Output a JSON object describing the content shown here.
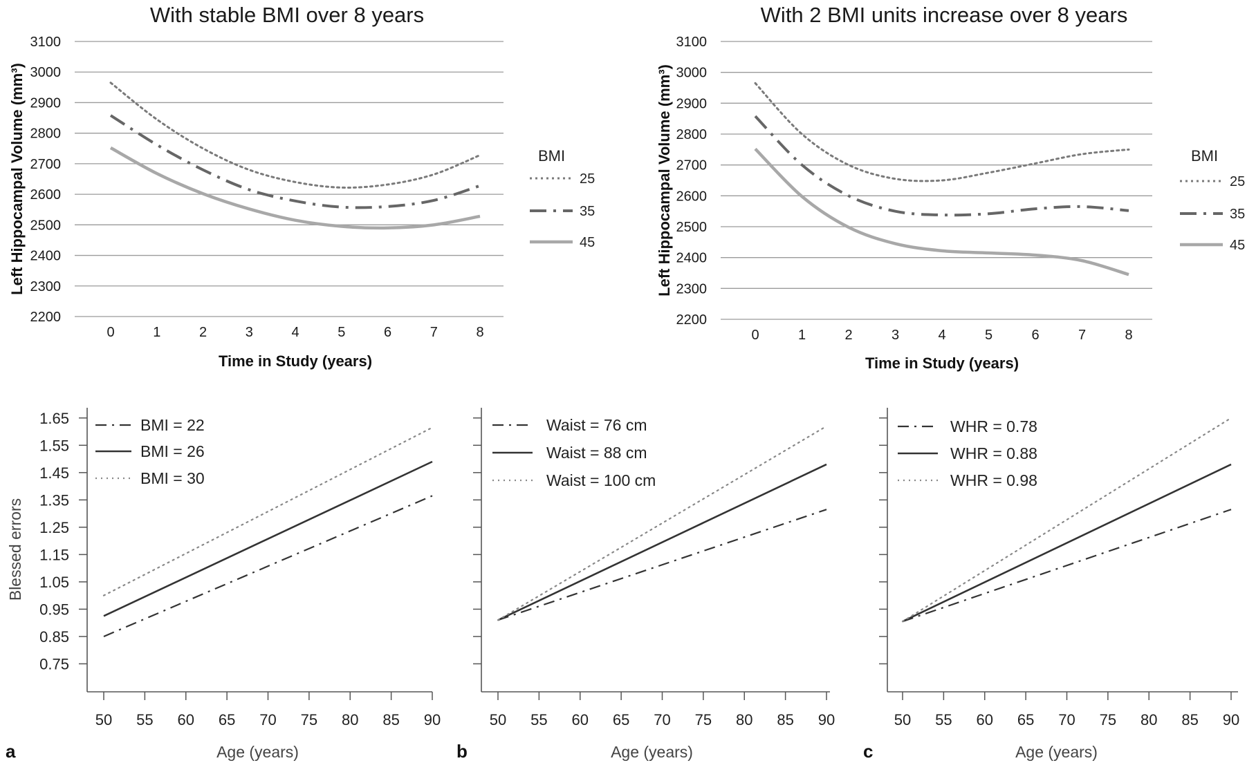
{
  "chart_data": [
    {
      "type": "line",
      "title": "With stable BMI over 8 years",
      "xlabel": "Time in Study (years)",
      "ylabel": "Left Hippocampal Volume (mm³)",
      "x": [
        0,
        1,
        2,
        3,
        4,
        5,
        6,
        7,
        8
      ],
      "ylim": [
        2200,
        3100
      ],
      "yticks": [
        2200,
        2300,
        2400,
        2500,
        2600,
        2700,
        2800,
        2900,
        3000,
        3100
      ],
      "grid": true,
      "legend_title": "BMI",
      "legend_position": "right",
      "series": [
        {
          "name": "25",
          "style": "dotted",
          "color": "#7a7a7a",
          "values": [
            2965,
            2845,
            2750,
            2680,
            2640,
            2622,
            2632,
            2665,
            2728
          ]
        },
        {
          "name": "35",
          "style": "dash-dot",
          "color": "#666666",
          "values": [
            2858,
            2762,
            2680,
            2615,
            2578,
            2558,
            2560,
            2580,
            2628
          ]
        },
        {
          "name": "45",
          "style": "solid",
          "color": "#a8a8a8",
          "values": [
            2752,
            2668,
            2602,
            2552,
            2515,
            2495,
            2490,
            2500,
            2528
          ]
        }
      ]
    },
    {
      "type": "line",
      "title": "With 2 BMI units increase over 8 years",
      "xlabel": "Time in Study (years)",
      "ylabel": "Left Hippocampal Volume (mm³)",
      "x": [
        0,
        1,
        2,
        3,
        4,
        5,
        6,
        7,
        8
      ],
      "ylim": [
        2200,
        3100
      ],
      "yticks": [
        2200,
        2300,
        2400,
        2500,
        2600,
        2700,
        2800,
        2900,
        3000,
        3100
      ],
      "grid": true,
      "legend_title": "BMI",
      "legend_position": "right",
      "series": [
        {
          "name": "25",
          "style": "dotted",
          "color": "#7a7a7a",
          "values": [
            2965,
            2800,
            2700,
            2655,
            2650,
            2675,
            2705,
            2735,
            2750
          ]
        },
        {
          "name": "35",
          "style": "dash-dot",
          "color": "#666666",
          "values": [
            2858,
            2700,
            2600,
            2550,
            2538,
            2542,
            2558,
            2565,
            2552
          ]
        },
        {
          "name": "45",
          "style": "solid",
          "color": "#a8a8a8",
          "values": [
            2752,
            2598,
            2498,
            2445,
            2422,
            2415,
            2408,
            2390,
            2345
          ]
        }
      ]
    },
    {
      "type": "line",
      "panel_label": "a",
      "title": "",
      "xlabel": "Age (years)",
      "ylabel": "Blessed errors",
      "x": [
        50,
        90
      ],
      "xticks": [
        50,
        55,
        60,
        65,
        70,
        75,
        80,
        85,
        90
      ],
      "ylim": [
        0.65,
        1.7
      ],
      "yticks": [
        "0.75",
        "0.85",
        "0.95",
        "1.05",
        "1.15",
        "1.25",
        "1.35",
        "1.45",
        "1.55",
        "1.65"
      ],
      "grid": false,
      "legend_position": "top-left",
      "series": [
        {
          "name": "BMI = 22",
          "style": "dash-dot",
          "color": "#333333",
          "values": [
            0.85,
            1.365
          ]
        },
        {
          "name": "BMI = 26",
          "style": "solid",
          "color": "#333333",
          "values": [
            0.925,
            1.49
          ]
        },
        {
          "name": "BMI = 30",
          "style": "dotted",
          "color": "#888888",
          "values": [
            1.0,
            1.615
          ]
        }
      ]
    },
    {
      "type": "line",
      "panel_label": "b",
      "title": "",
      "xlabel": "Age (years)",
      "ylabel": "",
      "x": [
        50,
        90
      ],
      "xticks": [
        50,
        55,
        60,
        65,
        70,
        75,
        80,
        85,
        90
      ],
      "ylim": [
        0.65,
        1.7
      ],
      "yticks": [],
      "grid": false,
      "legend_position": "top-left",
      "series": [
        {
          "name": "Waist = 76 cm",
          "style": "dash-dot",
          "color": "#333333",
          "values": [
            0.91,
            1.315
          ]
        },
        {
          "name": "Waist = 88 cm",
          "style": "solid",
          "color": "#333333",
          "values": [
            0.91,
            1.48
          ]
        },
        {
          "name": "Waist = 100 cm",
          "style": "dotted",
          "color": "#888888",
          "values": [
            0.91,
            1.62
          ]
        }
      ]
    },
    {
      "type": "line",
      "panel_label": "c",
      "title": "",
      "xlabel": "Age (years)",
      "ylabel": "",
      "x": [
        50,
        90
      ],
      "xticks": [
        50,
        55,
        60,
        65,
        70,
        75,
        80,
        85,
        90
      ],
      "ylim": [
        0.65,
        1.7
      ],
      "yticks": [],
      "grid": false,
      "legend_position": "top-left",
      "series": [
        {
          "name": "WHR = 0.78",
          "style": "dash-dot",
          "color": "#333333",
          "values": [
            0.905,
            1.315
          ]
        },
        {
          "name": "WHR = 0.88",
          "style": "solid",
          "color": "#333333",
          "values": [
            0.905,
            1.48
          ]
        },
        {
          "name": "WHR = 0.98",
          "style": "dotted",
          "color": "#888888",
          "values": [
            0.905,
            1.65
          ]
        }
      ]
    }
  ]
}
